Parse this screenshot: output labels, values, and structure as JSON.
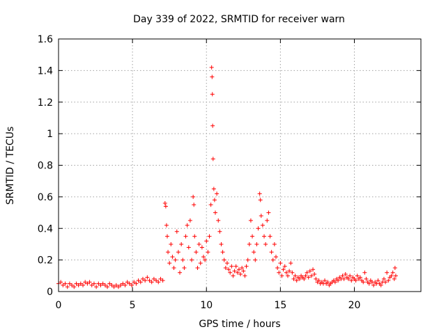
{
  "chart_data": {
    "type": "scatter",
    "title": "Day 339 of 2022, SRMTID for receiver warn",
    "xlabel": "GPS time / hours",
    "ylabel": "SRMTID / TECUs",
    "xlim": [
      0,
      24.5
    ],
    "ylim": [
      0,
      1.6
    ],
    "x_ticks": [
      0,
      5,
      10,
      15,
      20
    ],
    "x_tick_labels": [
      "0",
      "5",
      "10",
      "15",
      "20"
    ],
    "y_ticks": [
      0,
      0.2,
      0.4,
      0.6,
      0.8,
      1,
      1.2,
      1.4,
      1.6
    ],
    "y_tick_labels": [
      "0",
      "0.2",
      "0.4",
      "0.6",
      "0.8",
      "1",
      "1.2",
      "1.4",
      "1.6"
    ],
    "grid": true,
    "marker": "+",
    "color": "#ff0000",
    "series": [
      {
        "name": "SRMTID",
        "points": [
          [
            0.0,
            0.05
          ],
          [
            0.15,
            0.06
          ],
          [
            0.3,
            0.04
          ],
          [
            0.45,
            0.05
          ],
          [
            0.6,
            0.03
          ],
          [
            0.75,
            0.05
          ],
          [
            0.9,
            0.04
          ],
          [
            1.05,
            0.03
          ],
          [
            1.2,
            0.05
          ],
          [
            1.35,
            0.04
          ],
          [
            1.5,
            0.05
          ],
          [
            1.65,
            0.04
          ],
          [
            1.8,
            0.06
          ],
          [
            1.95,
            0.05
          ],
          [
            2.1,
            0.06
          ],
          [
            2.25,
            0.04
          ],
          [
            2.4,
            0.05
          ],
          [
            2.55,
            0.03
          ],
          [
            2.7,
            0.05
          ],
          [
            2.85,
            0.04
          ],
          [
            3.0,
            0.05
          ],
          [
            3.15,
            0.04
          ],
          [
            3.3,
            0.03
          ],
          [
            3.45,
            0.05
          ],
          [
            3.6,
            0.04
          ],
          [
            3.75,
            0.03
          ],
          [
            3.9,
            0.04
          ],
          [
            4.05,
            0.03
          ],
          [
            4.2,
            0.04
          ],
          [
            4.35,
            0.05
          ],
          [
            4.5,
            0.04
          ],
          [
            4.65,
            0.06
          ],
          [
            4.8,
            0.05
          ],
          [
            4.95,
            0.04
          ],
          [
            5.1,
            0.06
          ],
          [
            5.25,
            0.05
          ],
          [
            5.4,
            0.07
          ],
          [
            5.55,
            0.06
          ],
          [
            5.7,
            0.08
          ],
          [
            5.85,
            0.07
          ],
          [
            6.0,
            0.09
          ],
          [
            6.15,
            0.07
          ],
          [
            6.3,
            0.06
          ],
          [
            6.45,
            0.08
          ],
          [
            6.6,
            0.07
          ],
          [
            6.75,
            0.06
          ],
          [
            6.9,
            0.08
          ],
          [
            7.05,
            0.07
          ],
          [
            7.2,
            0.56
          ],
          [
            7.25,
            0.54
          ],
          [
            7.3,
            0.42
          ],
          [
            7.35,
            0.35
          ],
          [
            7.4,
            0.25
          ],
          [
            7.5,
            0.18
          ],
          [
            7.6,
            0.3
          ],
          [
            7.7,
            0.22
          ],
          [
            7.8,
            0.15
          ],
          [
            7.9,
            0.2
          ],
          [
            8.0,
            0.38
          ],
          [
            8.1,
            0.25
          ],
          [
            8.2,
            0.12
          ],
          [
            8.3,
            0.3
          ],
          [
            8.4,
            0.2
          ],
          [
            8.5,
            0.15
          ],
          [
            8.6,
            0.35
          ],
          [
            8.7,
            0.42
          ],
          [
            8.8,
            0.28
          ],
          [
            8.9,
            0.45
          ],
          [
            9.0,
            0.2
          ],
          [
            9.1,
            0.6
          ],
          [
            9.15,
            0.55
          ],
          [
            9.2,
            0.35
          ],
          [
            9.3,
            0.25
          ],
          [
            9.4,
            0.15
          ],
          [
            9.5,
            0.3
          ],
          [
            9.6,
            0.18
          ],
          [
            9.7,
            0.28
          ],
          [
            9.8,
            0.22
          ],
          [
            9.9,
            0.2
          ],
          [
            10.0,
            0.32
          ],
          [
            10.1,
            0.25
          ],
          [
            10.2,
            0.35
          ],
          [
            10.3,
            0.55
          ],
          [
            10.35,
            1.42
          ],
          [
            10.38,
            1.36
          ],
          [
            10.4,
            1.25
          ],
          [
            10.42,
            1.05
          ],
          [
            10.45,
            0.84
          ],
          [
            10.5,
            0.65
          ],
          [
            10.55,
            0.58
          ],
          [
            10.6,
            0.5
          ],
          [
            10.7,
            0.62
          ],
          [
            10.8,
            0.45
          ],
          [
            10.9,
            0.38
          ],
          [
            11.0,
            0.3
          ],
          [
            11.1,
            0.25
          ],
          [
            11.2,
            0.2
          ],
          [
            11.3,
            0.15
          ],
          [
            11.4,
            0.18
          ],
          [
            11.5,
            0.14
          ],
          [
            11.6,
            0.12
          ],
          [
            11.7,
            0.16
          ],
          [
            11.8,
            0.1
          ],
          [
            11.9,
            0.13
          ],
          [
            12.0,
            0.16
          ],
          [
            12.1,
            0.12
          ],
          [
            12.2,
            0.14
          ],
          [
            12.3,
            0.11
          ],
          [
            12.4,
            0.15
          ],
          [
            12.5,
            0.13
          ],
          [
            12.6,
            0.1
          ],
          [
            12.7,
            0.16
          ],
          [
            12.8,
            0.2
          ],
          [
            12.9,
            0.3
          ],
          [
            13.0,
            0.45
          ],
          [
            13.1,
            0.35
          ],
          [
            13.2,
            0.25
          ],
          [
            13.3,
            0.2
          ],
          [
            13.4,
            0.3
          ],
          [
            13.5,
            0.4
          ],
          [
            13.6,
            0.62
          ],
          [
            13.65,
            0.58
          ],
          [
            13.7,
            0.48
          ],
          [
            13.8,
            0.42
          ],
          [
            13.9,
            0.35
          ],
          [
            14.0,
            0.3
          ],
          [
            14.1,
            0.45
          ],
          [
            14.2,
            0.5
          ],
          [
            14.3,
            0.35
          ],
          [
            14.4,
            0.25
          ],
          [
            14.5,
            0.2
          ],
          [
            14.6,
            0.3
          ],
          [
            14.7,
            0.22
          ],
          [
            14.8,
            0.15
          ],
          [
            14.9,
            0.12
          ],
          [
            15.0,
            0.18
          ],
          [
            15.1,
            0.1
          ],
          [
            15.2,
            0.14
          ],
          [
            15.3,
            0.16
          ],
          [
            15.4,
            0.12
          ],
          [
            15.5,
            0.1
          ],
          [
            15.6,
            0.13
          ],
          [
            15.7,
            0.18
          ],
          [
            15.8,
            0.12
          ],
          [
            15.9,
            0.08
          ],
          [
            16.0,
            0.1
          ],
          [
            16.1,
            0.07
          ],
          [
            16.2,
            0.09
          ],
          [
            16.3,
            0.08
          ],
          [
            16.4,
            0.1
          ],
          [
            16.5,
            0.09
          ],
          [
            16.6,
            0.08
          ],
          [
            16.7,
            0.1
          ],
          [
            16.8,
            0.12
          ],
          [
            16.9,
            0.09
          ],
          [
            17.0,
            0.13
          ],
          [
            17.1,
            0.1
          ],
          [
            17.2,
            0.14
          ],
          [
            17.3,
            0.11
          ],
          [
            17.4,
            0.08
          ],
          [
            17.5,
            0.06
          ],
          [
            17.6,
            0.07
          ],
          [
            17.7,
            0.05
          ],
          [
            17.8,
            0.06
          ],
          [
            17.9,
            0.05
          ],
          [
            18.0,
            0.07
          ],
          [
            18.1,
            0.05
          ],
          [
            18.2,
            0.06
          ],
          [
            18.3,
            0.04
          ],
          [
            18.4,
            0.05
          ],
          [
            18.5,
            0.06
          ],
          [
            18.6,
            0.07
          ],
          [
            18.7,
            0.06
          ],
          [
            18.8,
            0.08
          ],
          [
            18.9,
            0.07
          ],
          [
            19.0,
            0.09
          ],
          [
            19.1,
            0.08
          ],
          [
            19.2,
            0.1
          ],
          [
            19.3,
            0.08
          ],
          [
            19.4,
            0.11
          ],
          [
            19.5,
            0.09
          ],
          [
            19.6,
            0.08
          ],
          [
            19.7,
            0.1
          ],
          [
            19.8,
            0.07
          ],
          [
            19.9,
            0.09
          ],
          [
            20.0,
            0.08
          ],
          [
            20.1,
            0.07
          ],
          [
            20.2,
            0.1
          ],
          [
            20.3,
            0.08
          ],
          [
            20.4,
            0.09
          ],
          [
            20.5,
            0.07
          ],
          [
            20.6,
            0.06
          ],
          [
            20.7,
            0.12
          ],
          [
            20.8,
            0.08
          ],
          [
            20.9,
            0.06
          ],
          [
            21.0,
            0.05
          ],
          [
            21.1,
            0.07
          ],
          [
            21.2,
            0.06
          ],
          [
            21.3,
            0.04
          ],
          [
            21.4,
            0.06
          ],
          [
            21.5,
            0.05
          ],
          [
            21.6,
            0.07
          ],
          [
            21.7,
            0.05
          ],
          [
            21.8,
            0.04
          ],
          [
            21.9,
            0.06
          ],
          [
            22.0,
            0.08
          ],
          [
            22.1,
            0.06
          ],
          [
            22.2,
            0.12
          ],
          [
            22.3,
            0.07
          ],
          [
            22.4,
            0.09
          ],
          [
            22.5,
            0.1
          ],
          [
            22.6,
            0.12
          ],
          [
            22.7,
            0.08
          ],
          [
            22.75,
            0.15
          ],
          [
            22.8,
            0.1
          ]
        ]
      }
    ]
  }
}
